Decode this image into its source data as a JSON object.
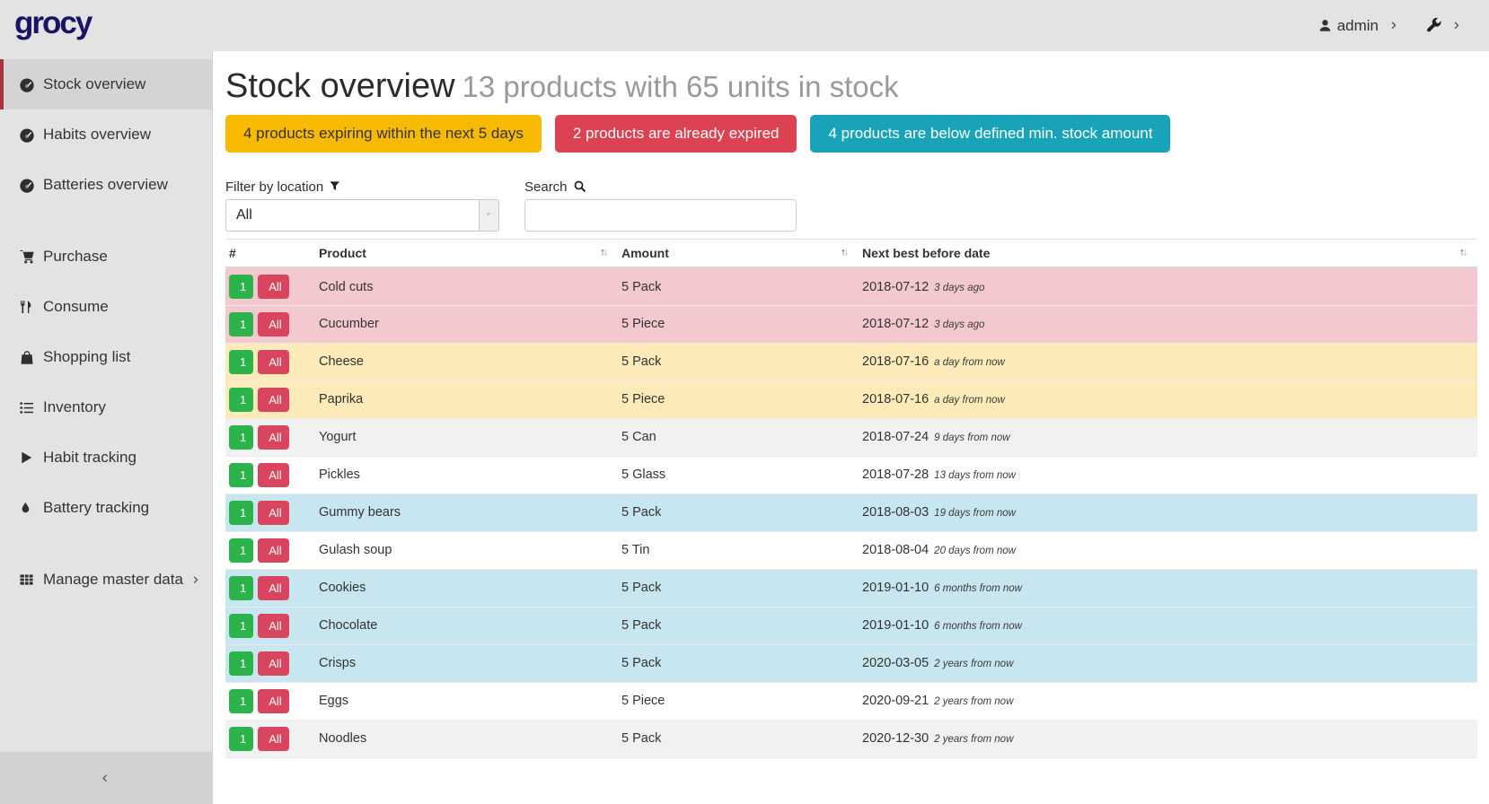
{
  "colors": {
    "logo-color": "#1b1464",
    "accent-red": "#a8323e",
    "row-expired": "#f4c8cf",
    "row-expiring": "#fceab8",
    "row-belowmin": "#c7e6ef",
    "btn-green": "#2cb34c",
    "btn-red": "#d9455f",
    "badge-yellow": "#f8ba00",
    "badge-red": "#dc4252",
    "badge-teal": "#18a3b8"
  },
  "header": {
    "logo": "grocy",
    "user": "admin"
  },
  "sidebar": {
    "groups": [
      [
        {
          "label": "Stock overview",
          "icon": "tachometer-icon",
          "active": true
        },
        {
          "label": "Habits overview",
          "icon": "tachometer-icon"
        },
        {
          "label": "Batteries overview",
          "icon": "tachometer-icon"
        }
      ],
      [
        {
          "label": "Purchase",
          "icon": "cart-icon"
        },
        {
          "label": "Consume",
          "icon": "utensils-icon"
        },
        {
          "label": "Shopping list",
          "icon": "bag-icon"
        },
        {
          "label": "Inventory",
          "icon": "list-icon"
        },
        {
          "label": "Habit tracking",
          "icon": "play-icon"
        },
        {
          "label": "Battery tracking",
          "icon": "tint-icon"
        }
      ],
      [
        {
          "label": "Manage master data",
          "icon": "table-icon",
          "chevron": true
        }
      ]
    ]
  },
  "page": {
    "title": "Stock overview",
    "subtitle": "13 products with 65 units in stock",
    "badges": [
      {
        "text": "4 products expiring within the next 5 days",
        "bg": "badge-yellow",
        "fg": "#333333"
      },
      {
        "text": "2 products are already expired",
        "bg": "badge-red",
        "fg": "#ffffff"
      },
      {
        "text": "4 products are below defined min. stock amount",
        "bg": "badge-teal",
        "fg": "#ffffff"
      }
    ],
    "filter_label": "Filter by location",
    "filter_value": "All",
    "search_label": "Search"
  },
  "table": {
    "columns": [
      "#",
      "Product",
      "Amount",
      "Next best before date"
    ],
    "row_button_labels": {
      "one": "1",
      "all": "All"
    },
    "rows": [
      {
        "product": "Cold cuts",
        "amount": "5 Pack",
        "date": "2018-07-12",
        "timeago": "3 days ago",
        "status": "expired"
      },
      {
        "product": "Cucumber",
        "amount": "5 Piece",
        "date": "2018-07-12",
        "timeago": "3 days ago",
        "status": "expired"
      },
      {
        "product": "Cheese",
        "amount": "5 Pack",
        "date": "2018-07-16",
        "timeago": "a day from now",
        "status": "expiring-soon"
      },
      {
        "product": "Paprika",
        "amount": "5 Piece",
        "date": "2018-07-16",
        "timeago": "a day from now",
        "status": "expiring-soon"
      },
      {
        "product": "Yogurt",
        "amount": "5 Can",
        "date": "2018-07-24",
        "timeago": "9 days from now",
        "status": "ok"
      },
      {
        "product": "Pickles",
        "amount": "5 Glass",
        "date": "2018-07-28",
        "timeago": "13 days from now",
        "status": "ok"
      },
      {
        "product": "Gummy bears",
        "amount": "5 Pack",
        "date": "2018-08-03",
        "timeago": "19 days from now",
        "status": "below-min"
      },
      {
        "product": "Gulash soup",
        "amount": "5 Tin",
        "date": "2018-08-04",
        "timeago": "20 days from now",
        "status": "ok"
      },
      {
        "product": "Cookies",
        "amount": "5 Pack",
        "date": "2019-01-10",
        "timeago": "6 months from now",
        "status": "below-min"
      },
      {
        "product": "Chocolate",
        "amount": "5 Pack",
        "date": "2019-01-10",
        "timeago": "6 months from now",
        "status": "below-min"
      },
      {
        "product": "Crisps",
        "amount": "5 Pack",
        "date": "2020-03-05",
        "timeago": "2 years from now",
        "status": "below-min"
      },
      {
        "product": "Eggs",
        "amount": "5 Piece",
        "date": "2020-09-21",
        "timeago": "2 years from now",
        "status": "ok"
      },
      {
        "product": "Noodles",
        "amount": "5 Pack",
        "date": "2020-12-30",
        "timeago": "2 years from now",
        "status": "ok"
      }
    ]
  }
}
